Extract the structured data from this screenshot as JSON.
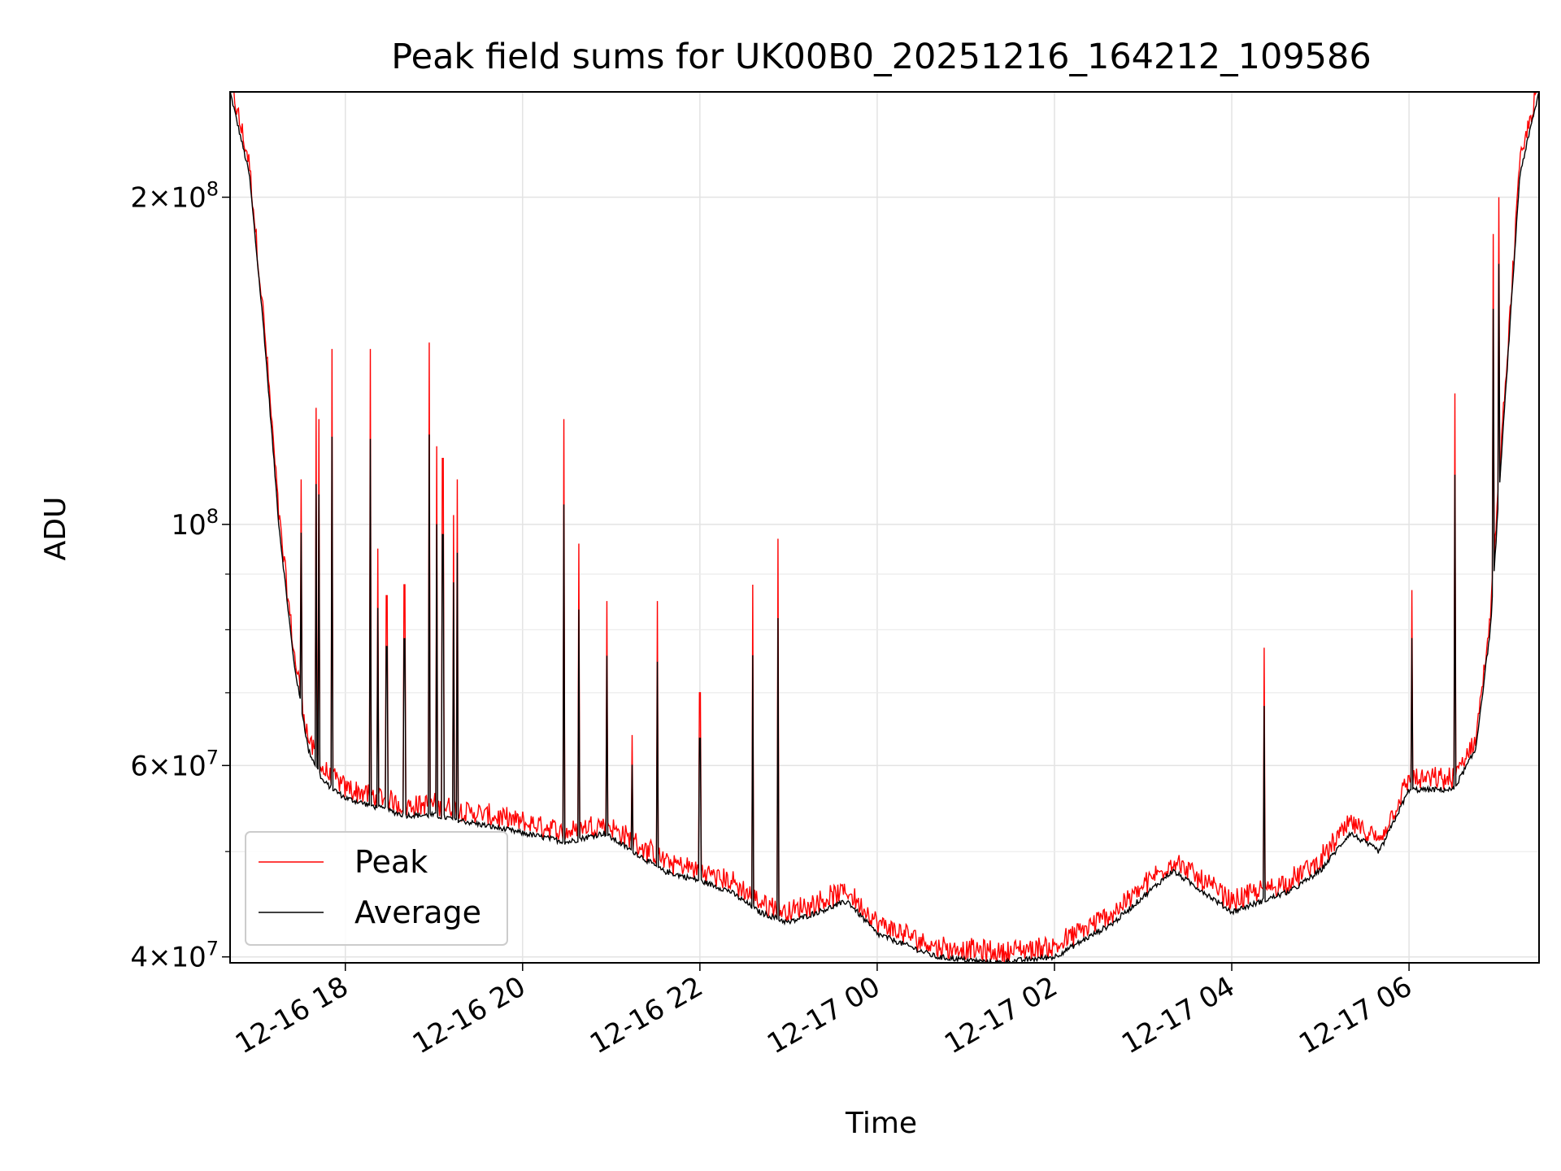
{
  "chart_data": {
    "type": "line",
    "title": "Peak field sums for UK00B0_20251216_164212_109586",
    "xlabel": "Time",
    "ylabel": "ADU",
    "yscale": "log",
    "xlim": [
      "2025-12-16 16:42",
      "2025-12-17 07:28"
    ],
    "ylim": [
      39500000,
      250000000
    ],
    "x_ticks": [
      "12-16 18",
      "12-16 20",
      "12-16 22",
      "12-17 00",
      "12-17 02",
      "12-17 04",
      "12-17 06"
    ],
    "x_tick_times": [
      "2025-12-16 18:00",
      "2025-12-16 20:00",
      "2025-12-16 22:00",
      "2025-12-17 00:00",
      "2025-12-17 02:00",
      "2025-12-17 04:00",
      "2025-12-17 06:00"
    ],
    "y_ticks": [
      {
        "value": 40000000,
        "mantissa": "4",
        "exp": "7"
      },
      {
        "value": 60000000,
        "mantissa": "6",
        "exp": "7"
      },
      {
        "value": 100000000,
        "mantissa": "",
        "exp": "8"
      },
      {
        "value": 200000000,
        "mantissa": "2",
        "exp": "8"
      }
    ],
    "y_minor_ticks": [
      50000000,
      70000000,
      80000000,
      90000000
    ],
    "grid": true,
    "legend_position": "lower left",
    "colors": {
      "Peak": "#ff0000",
      "Average": "#000000"
    },
    "series": [
      {
        "name": "Average",
        "x": [
          "2025-12-16 16:42",
          "2025-12-16 16:55",
          "2025-12-16 17:05",
          "2025-12-16 17:15",
          "2025-12-16 17:25",
          "2025-12-16 17:35",
          "2025-12-16 17:45",
          "2025-12-16 18:00",
          "2025-12-16 18:20",
          "2025-12-16 18:40",
          "2025-12-16 19:00",
          "2025-12-16 19:30",
          "2025-12-16 20:00",
          "2025-12-16 20:30",
          "2025-12-16 20:55",
          "2025-12-16 21:15",
          "2025-12-16 21:35",
          "2025-12-16 22:00",
          "2025-12-16 22:20",
          "2025-12-16 22:40",
          "2025-12-16 23:00",
          "2025-12-16 23:20",
          "2025-12-16 23:40",
          "2025-12-17 00:00",
          "2025-12-17 00:40",
          "2025-12-17 01:20",
          "2025-12-17 02:00",
          "2025-12-17 02:40",
          "2025-12-17 03:20",
          "2025-12-17 03:40",
          "2025-12-17 04:00",
          "2025-12-17 04:20",
          "2025-12-17 04:40",
          "2025-12-17 05:00",
          "2025-12-17 05:20",
          "2025-12-17 05:40",
          "2025-12-17 06:00",
          "2025-12-17 06:30",
          "2025-12-17 06:45",
          "2025-12-17 06:55",
          "2025-12-17 07:05",
          "2025-12-17 07:15",
          "2025-12-17 07:28"
        ],
        "values": [
          250000000,
          210000000,
          150000000,
          100000000,
          75000000,
          62000000,
          58000000,
          56000000,
          55000000,
          54000000,
          54000000,
          53000000,
          52000000,
          51000000,
          52000000,
          50000000,
          48000000,
          47000000,
          46000000,
          44000000,
          43000000,
          44000000,
          45000000,
          42000000,
          40000000,
          39500000,
          40000000,
          43000000,
          48000000,
          46000000,
          44000000,
          45000000,
          46000000,
          48000000,
          52000000,
          50000000,
          57000000,
          57000000,
          62000000,
          80000000,
          130000000,
          210000000,
          250000000
        ]
      },
      {
        "name": "Peak",
        "spikes": [
          {
            "x": "2025-12-16 17:30",
            "value": 110000000
          },
          {
            "x": "2025-12-16 17:40",
            "value": 128000000
          },
          {
            "x": "2025-12-16 17:42",
            "value": 125000000
          },
          {
            "x": "2025-12-16 17:51",
            "value": 145000000
          },
          {
            "x": "2025-12-16 18:17",
            "value": 145000000
          },
          {
            "x": "2025-12-16 18:22",
            "value": 95000000
          },
          {
            "x": "2025-12-16 18:28",
            "value": 86000000
          },
          {
            "x": "2025-12-16 18:40",
            "value": 88000000
          },
          {
            "x": "2025-12-16 18:57",
            "value": 147000000
          },
          {
            "x": "2025-12-16 19:02",
            "value": 118000000
          },
          {
            "x": "2025-12-16 19:06",
            "value": 115000000
          },
          {
            "x": "2025-12-16 19:13",
            "value": 102000000
          },
          {
            "x": "2025-12-16 19:16",
            "value": 110000000
          },
          {
            "x": "2025-12-16 20:28",
            "value": 125000000
          },
          {
            "x": "2025-12-16 20:38",
            "value": 96000000
          },
          {
            "x": "2025-12-16 20:57",
            "value": 85000000
          },
          {
            "x": "2025-12-16 21:14",
            "value": 64000000
          },
          {
            "x": "2025-12-16 21:31",
            "value": 85000000
          },
          {
            "x": "2025-12-16 22:00",
            "value": 70000000
          },
          {
            "x": "2025-12-16 22:36",
            "value": 88000000
          },
          {
            "x": "2025-12-16 22:53",
            "value": 97000000
          },
          {
            "x": "2025-12-17 04:22",
            "value": 77000000
          },
          {
            "x": "2025-12-17 06:02",
            "value": 87000000
          },
          {
            "x": "2025-12-17 06:31",
            "value": 132000000
          },
          {
            "x": "2025-12-17 06:57",
            "value": 185000000
          },
          {
            "x": "2025-12-17 07:01",
            "value": 200000000
          }
        ]
      }
    ]
  }
}
